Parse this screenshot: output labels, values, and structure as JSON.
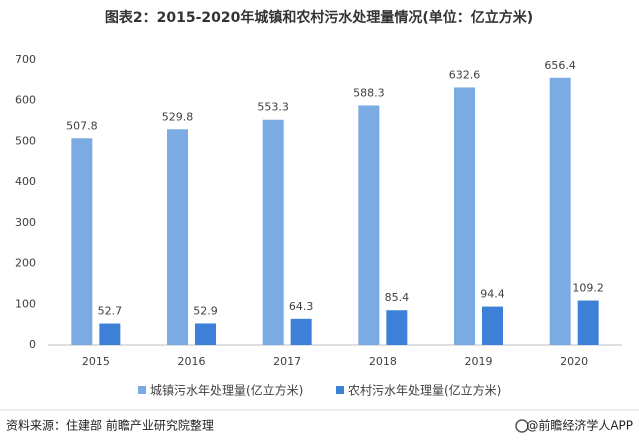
{
  "chart_data": {
    "type": "bar",
    "title": "图表2：2015-2020年城镇和农村污水处理量情况(单位：亿立方米)",
    "categories": [
      "2015",
      "2016",
      "2017",
      "2018",
      "2019",
      "2020"
    ],
    "series": [
      {
        "name": "城镇污水年处理量(亿立方米)",
        "color": "#7caae3",
        "values": [
          507.8,
          529.8,
          553.3,
          588.3,
          632.6,
          656.4
        ]
      },
      {
        "name": "农村污水年处理量(亿立方米)",
        "color": "#3d80d8",
        "values": [
          52.7,
          52.9,
          64.3,
          85.4,
          94.4,
          109.2
        ]
      }
    ],
    "ylim": [
      0,
      700
    ],
    "yticks": [
      0,
      100,
      200,
      300,
      400,
      500,
      600,
      700
    ],
    "grid": false,
    "legend": "bottom",
    "source": "资料来源：住建部 前瞻产业研究院整理",
    "brand": "@前瞻经济学人APP"
  }
}
